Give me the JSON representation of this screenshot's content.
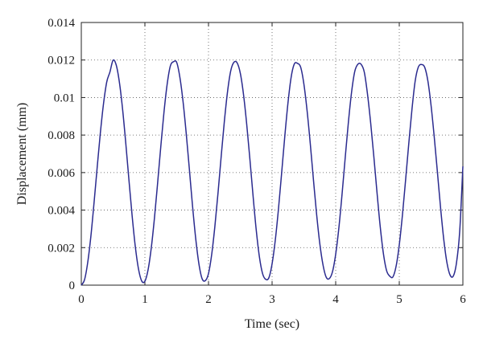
{
  "chart_data": {
    "type": "line",
    "title": "",
    "xlabel": "Time (sec)",
    "ylabel": "Displacement (mm)",
    "xlim": [
      0,
      6
    ],
    "ylim": [
      0,
      0.014
    ],
    "x_ticks": [
      0,
      1,
      2,
      3,
      4,
      5,
      6
    ],
    "x_tick_labels": [
      "0",
      "1",
      "2",
      "3",
      "4",
      "5",
      "6"
    ],
    "y_ticks": [
      0,
      0.002,
      0.004,
      0.006,
      0.008,
      0.01,
      0.012,
      0.014
    ],
    "y_tick_labels": [
      "0",
      "0.002",
      "0.004",
      "0.006",
      "0.008",
      "0.01",
      "0.012",
      "0.014"
    ],
    "grid": true,
    "grid_style": "dotted",
    "legend": "none",
    "line_color": "#2b2b8f",
    "series": [
      {
        "x": [
          0,
          0.05,
          0.1,
          0.15,
          0.2,
          0.25,
          0.3,
          0.35,
          0.4,
          0.45,
          0.5,
          0.55,
          0.6,
          0.65,
          0.7,
          0.75,
          0.8,
          0.85,
          0.9,
          0.95,
          1.0,
          1.05,
          1.1,
          1.15,
          1.2,
          1.25,
          1.3,
          1.35,
          1.4,
          1.45,
          1.5,
          1.55,
          1.6,
          1.65,
          1.7,
          1.75,
          1.8,
          1.85,
          1.9,
          1.95,
          2.0,
          2.05,
          2.1,
          2.15,
          2.2,
          2.25,
          2.3,
          2.35,
          2.4,
          2.45,
          2.5,
          2.55,
          2.6,
          2.65,
          2.7,
          2.75,
          2.8,
          2.85,
          2.9,
          2.95,
          3.0,
          3.05,
          3.1,
          3.15,
          3.2,
          3.25,
          3.3,
          3.35,
          3.4,
          3.45,
          3.5,
          3.55,
          3.6,
          3.65,
          3.7,
          3.75,
          3.8,
          3.85,
          3.9,
          3.95,
          4.0,
          4.05,
          4.1,
          4.15,
          4.2,
          4.25,
          4.3,
          4.35,
          4.4,
          4.45,
          4.5,
          4.55,
          4.6,
          4.65,
          4.7,
          4.75,
          4.8,
          4.85,
          4.9,
          4.95,
          5.0,
          5.05,
          5.1,
          5.15,
          5.2,
          5.25,
          5.3,
          5.35,
          5.4,
          5.45,
          5.5,
          5.55,
          5.6,
          5.65,
          5.7,
          5.75,
          5.8,
          5.85,
          5.9,
          5.95,
          6.0
        ],
        "y": [
          0.0,
          0.00028,
          0.00119,
          0.00259,
          0.00438,
          0.00629,
          0.00813,
          0.00969,
          0.01083,
          0.01136,
          0.01199,
          0.01172,
          0.01079,
          0.00935,
          0.00754,
          0.00557,
          0.00367,
          0.00203,
          0.00085,
          0.00022,
          0.00021,
          0.00082,
          0.00198,
          0.00357,
          0.00544,
          0.00739,
          0.00922,
          0.01071,
          0.01168,
          0.01191,
          0.01187,
          0.01108,
          0.00978,
          0.00808,
          0.00615,
          0.00418,
          0.00245,
          0.00112,
          0.00034,
          0.00024,
          0.00062,
          0.00163,
          0.00312,
          0.00492,
          0.00688,
          0.00875,
          0.01033,
          0.01143,
          0.01188,
          0.01185,
          0.0113,
          0.01018,
          0.00861,
          0.00675,
          0.00479,
          0.00296,
          0.00152,
          0.00062,
          0.00031,
          0.0004,
          0.00114,
          0.00239,
          0.00405,
          0.00597,
          0.00794,
          0.00972,
          0.01109,
          0.01179,
          0.01182,
          0.01161,
          0.01072,
          0.00931,
          0.00756,
          0.00563,
          0.00378,
          0.00222,
          0.00109,
          0.00043,
          0.00035,
          0.00072,
          0.00165,
          0.00305,
          0.00484,
          0.0068,
          0.00869,
          0.01029,
          0.01139,
          0.01178,
          0.01177,
          0.01135,
          0.01019,
          0.00865,
          0.00685,
          0.00493,
          0.00313,
          0.00169,
          0.00078,
          0.00048,
          0.00044,
          0.00101,
          0.00215,
          0.00375,
          0.00563,
          0.00757,
          0.00939,
          0.01088,
          0.01163,
          0.01176,
          0.01161,
          0.01088,
          0.00957,
          0.00789,
          0.00601,
          0.0041,
          0.00242,
          0.00119,
          0.00053,
          0.00049,
          0.0012,
          0.00286,
          0.00633
        ]
      }
    ]
  }
}
